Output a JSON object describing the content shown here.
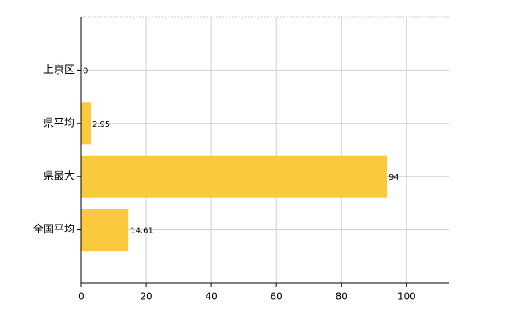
{
  "chart_data": {
    "type": "hbar",
    "categories": [
      "上京区",
      "県平均",
      "県最大",
      "全国平均"
    ],
    "values": [
      0,
      2.95,
      94,
      14.61
    ],
    "color": "#fbc93d",
    "xlim": [
      0,
      113
    ],
    "xticks": [
      0,
      20,
      40,
      60,
      80,
      100
    ],
    "grid": true
  }
}
